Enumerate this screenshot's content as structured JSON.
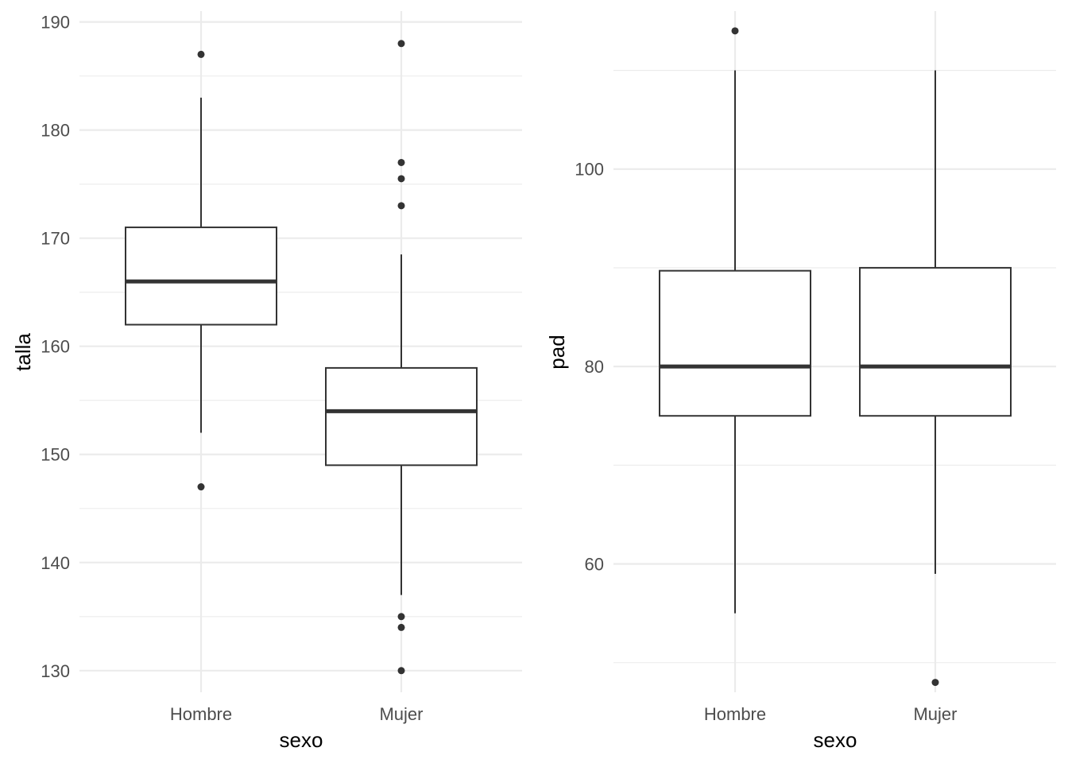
{
  "chart_data": [
    {
      "type": "box",
      "xlabel": "sexo",
      "ylabel": "talla",
      "categories": [
        "Hombre",
        "Mujer"
      ],
      "ylim": [
        128,
        191
      ],
      "yticks": [
        130,
        140,
        150,
        160,
        170,
        180,
        190
      ],
      "grid": true,
      "boxes": [
        {
          "category": "Hombre",
          "lower_whisker": 152,
          "q1": 162,
          "median": 166,
          "q3": 171,
          "upper_whisker": 183,
          "outliers": [
            187,
            147
          ]
        },
        {
          "category": "Mujer",
          "lower_whisker": 137,
          "q1": 149,
          "median": 154,
          "q3": 158,
          "upper_whisker": 168.5,
          "outliers": [
            188,
            177,
            175.5,
            173,
            135,
            134,
            130
          ]
        }
      ]
    },
    {
      "type": "box",
      "xlabel": "sexo",
      "ylabel": "pad",
      "categories": [
        "Hombre",
        "Mujer"
      ],
      "ylim": [
        47,
        116
      ],
      "yticks": [
        60,
        80,
        100
      ],
      "grid": true,
      "boxes": [
        {
          "category": "Hombre",
          "lower_whisker": 55,
          "q1": 75,
          "median": 80,
          "q3": 89.7,
          "upper_whisker": 110,
          "outliers": [
            114
          ]
        },
        {
          "category": "Mujer",
          "lower_whisker": 59,
          "q1": 75,
          "median": 80,
          "q3": 90,
          "upper_whisker": 110,
          "outliers": [
            48
          ]
        }
      ]
    }
  ]
}
